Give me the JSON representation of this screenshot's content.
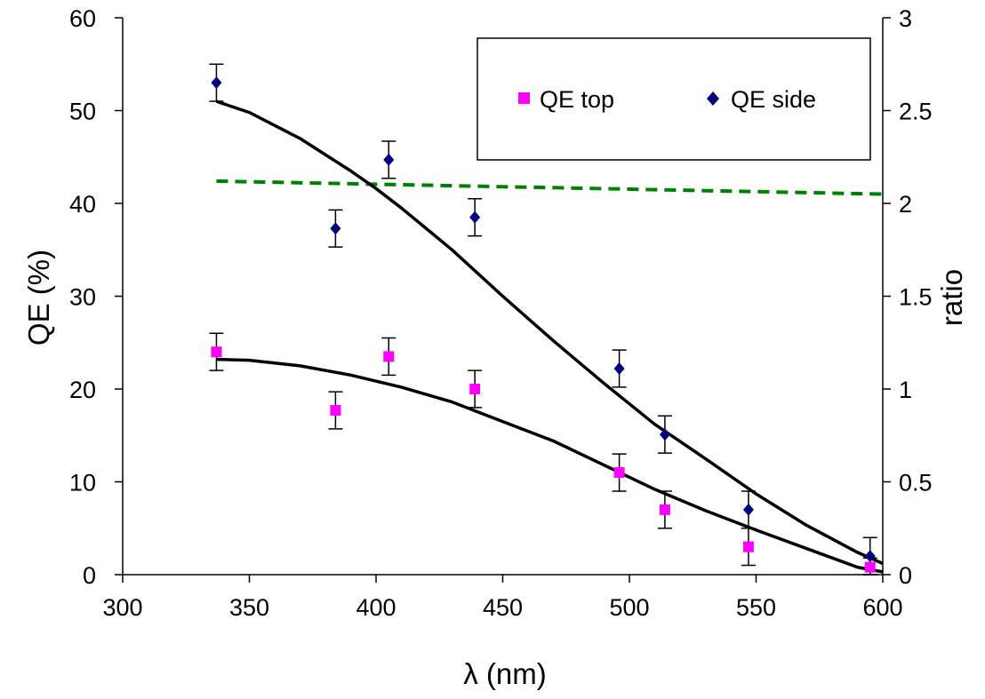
{
  "chart_data": {
    "type": "scatter",
    "title": "",
    "xlabel": "λ (nm)",
    "ylabel": "QE (%)",
    "y2label": "ratio",
    "xlim": [
      300,
      600
    ],
    "ylim": [
      0,
      60
    ],
    "y2lim": [
      0,
      3
    ],
    "x_ticks": [
      300,
      350,
      400,
      450,
      500,
      550,
      600
    ],
    "y_ticks": [
      0,
      10,
      20,
      30,
      40,
      50,
      60
    ],
    "y2_ticks": [
      "0",
      "0.5",
      "1",
      "1.5",
      "2",
      "2.5",
      "3"
    ],
    "grid": false,
    "legend_position": "top-right",
    "colors": {
      "qe_top": "#ff00ff",
      "qe_side": "#000080",
      "fit": "#000000",
      "ratio": "#008000"
    },
    "series": [
      {
        "name": "QE top",
        "marker": "square",
        "x": [
          337,
          384,
          405,
          439,
          496,
          514,
          547,
          595
        ],
        "y": [
          24,
          17.7,
          23.5,
          20,
          11,
          7,
          3,
          0.8
        ],
        "yerr": [
          2,
          2,
          2,
          2,
          2,
          2,
          2,
          1
        ]
      },
      {
        "name": "QE side",
        "marker": "diamond",
        "x": [
          337,
          384,
          405,
          439,
          496,
          514,
          547,
          595
        ],
        "y": [
          53,
          37.3,
          44.7,
          38.5,
          22.2,
          15.1,
          7,
          2
        ],
        "yerr": [
          2,
          2,
          2,
          2,
          2,
          2,
          2,
          2
        ]
      }
    ],
    "fit_curves": [
      {
        "x": [
          337,
          350,
          370,
          390,
          410,
          430,
          450,
          470,
          490,
          510,
          530,
          550,
          570,
          590,
          600
        ],
        "y": [
          23.2,
          23.1,
          22.5,
          21.5,
          20.2,
          18.6,
          16.5,
          14.4,
          11.8,
          9.2,
          6.9,
          4.8,
          2.8,
          0.8,
          0.3
        ]
      },
      {
        "x": [
          337,
          350,
          370,
          390,
          400,
          410,
          430,
          450,
          470,
          490,
          510,
          530,
          550,
          570,
          590,
          600
        ],
        "y": [
          51,
          49.8,
          47,
          43.5,
          41.6,
          39.5,
          35,
          30,
          25.2,
          20.6,
          16.2,
          12.5,
          8.7,
          5.3,
          2.4,
          1.2
        ]
      }
    ],
    "ratio_line": {
      "x": [
        337,
        600
      ],
      "y": [
        2.12,
        2.05
      ]
    }
  }
}
